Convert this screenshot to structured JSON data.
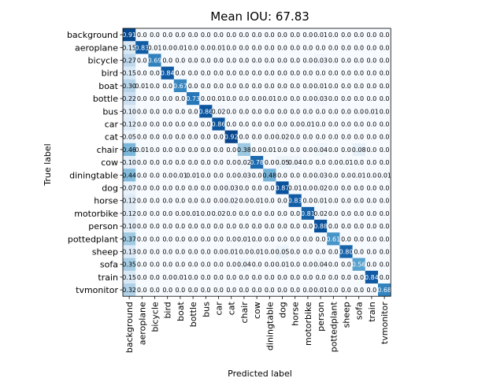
{
  "chart_data": {
    "type": "heatmap",
    "title": "Mean IOU: 67.83",
    "xlabel": "Predicted label",
    "ylabel": "True label",
    "labels": [
      "background",
      "aeroplane",
      "bicycle",
      "bird",
      "boat",
      "bottle",
      "bus",
      "car",
      "cat",
      "chair",
      "cow",
      "diningtable",
      "dog",
      "horse",
      "motorbike",
      "person",
      "pottedplant",
      "sheep",
      "sofa",
      "train",
      "tvmonitor"
    ],
    "colormap": "Blues",
    "vmin": 0,
    "vmax": 1,
    "matrix": [
      [
        0.91,
        0.0,
        0.0,
        0.0,
        0.0,
        0.0,
        0.0,
        0.0,
        0.0,
        0.0,
        0.0,
        0.0,
        0.0,
        0.0,
        0.0,
        0.01,
        0.0,
        0.0,
        0.0,
        0.0,
        0.0
      ],
      [
        0.15,
        0.83,
        0.01,
        0.0,
        0.01,
        0.0,
        0.0,
        0.01,
        0.0,
        0.0,
        0.0,
        0.0,
        0.0,
        0.0,
        0.0,
        0.0,
        0.0,
        0.0,
        0.0,
        0.0,
        0.0
      ],
      [
        0.27,
        0.0,
        0.69,
        0.0,
        0.0,
        0.0,
        0.0,
        0.0,
        0.0,
        0.0,
        0.0,
        0.0,
        0.0,
        0.0,
        0.0,
        0.03,
        0.0,
        0.0,
        0.0,
        0.0,
        0.0
      ],
      [
        0.15,
        0.0,
        0.0,
        0.84,
        0.0,
        0.0,
        0.0,
        0.0,
        0.0,
        0.0,
        0.0,
        0.0,
        0.0,
        0.0,
        0.0,
        0.0,
        0.0,
        0.0,
        0.0,
        0.0,
        0.0
      ],
      [
        0.3,
        0.01,
        0.0,
        0.0,
        0.67,
        0.0,
        0.0,
        0.0,
        0.0,
        0.0,
        0.0,
        0.0,
        0.0,
        0.0,
        0.0,
        0.01,
        0.0,
        0.0,
        0.0,
        0.0,
        0.0
      ],
      [
        0.22,
        0.0,
        0.0,
        0.0,
        0.0,
        0.73,
        0.0,
        0.01,
        0.0,
        0.0,
        0.0,
        0.01,
        0.0,
        0.0,
        0.0,
        0.03,
        0.0,
        0.0,
        0.0,
        0.0,
        0.0
      ],
      [
        0.1,
        0.0,
        0.0,
        0.0,
        0.0,
        0.0,
        0.86,
        0.02,
        0.0,
        0.0,
        0.0,
        0.0,
        0.0,
        0.0,
        0.0,
        0.0,
        0.0,
        0.0,
        0.0,
        0.01,
        0.0
      ],
      [
        0.12,
        0.0,
        0.0,
        0.0,
        0.0,
        0.0,
        0.0,
        0.86,
        0.0,
        0.0,
        0.0,
        0.0,
        0.0,
        0.0,
        0.01,
        0.0,
        0.0,
        0.0,
        0.0,
        0.0,
        0.0
      ],
      [
        0.05,
        0.0,
        0.0,
        0.0,
        0.0,
        0.0,
        0.0,
        0.0,
        0.92,
        0.0,
        0.0,
        0.0,
        0.02,
        0.0,
        0.0,
        0.0,
        0.0,
        0.0,
        0.0,
        0.0,
        0.0
      ],
      [
        0.46,
        0.01,
        0.0,
        0.0,
        0.0,
        0.0,
        0.0,
        0.0,
        0.0,
        0.38,
        0.0,
        0.01,
        0.0,
        0.0,
        0.0,
        0.04,
        0.0,
        0.0,
        0.08,
        0.0,
        0.0
      ],
      [
        0.1,
        0.0,
        0.0,
        0.0,
        0.0,
        0.0,
        0.0,
        0.0,
        0.0,
        0.02,
        0.78,
        0.0,
        0.05,
        0.04,
        0.0,
        0.0,
        0.0,
        0.01,
        0.0,
        0.0,
        0.0
      ],
      [
        0.44,
        0.0,
        0.0,
        0.0,
        0.01,
        0.01,
        0.0,
        0.0,
        0.0,
        0.03,
        0.0,
        0.48,
        0.0,
        0.0,
        0.0,
        0.03,
        0.0,
        0.0,
        0.01,
        0.0,
        0.01
      ],
      [
        0.07,
        0.0,
        0.0,
        0.0,
        0.0,
        0.0,
        0.0,
        0.0,
        0.03,
        0.0,
        0.0,
        0.0,
        0.87,
        0.01,
        0.0,
        0.02,
        0.0,
        0.0,
        0.0,
        0.0,
        0.0
      ],
      [
        0.12,
        0.0,
        0.0,
        0.0,
        0.0,
        0.0,
        0.0,
        0.0,
        0.02,
        0.0,
        0.01,
        0.0,
        0.0,
        0.83,
        0.0,
        0.01,
        0.0,
        0.0,
        0.0,
        0.0,
        0.0
      ],
      [
        0.12,
        0.0,
        0.0,
        0.0,
        0.0,
        0.01,
        0.0,
        0.02,
        0.0,
        0.0,
        0.0,
        0.0,
        0.0,
        0.0,
        0.81,
        0.02,
        0.0,
        0.0,
        0.0,
        0.0,
        0.0
      ],
      [
        0.1,
        0.0,
        0.0,
        0.0,
        0.0,
        0.0,
        0.0,
        0.0,
        0.0,
        0.0,
        0.0,
        0.0,
        0.0,
        0.0,
        0.0,
        0.88,
        0.0,
        0.0,
        0.0,
        0.0,
        0.0
      ],
      [
        0.37,
        0.0,
        0.0,
        0.0,
        0.0,
        0.0,
        0.0,
        0.0,
        0.0,
        0.01,
        0.0,
        0.0,
        0.0,
        0.0,
        0.0,
        0.0,
        0.61,
        0.0,
        0.0,
        0.0,
        0.0
      ],
      [
        0.13,
        0.0,
        0.0,
        0.0,
        0.0,
        0.0,
        0.0,
        0.0,
        0.01,
        0.0,
        0.01,
        0.0,
        0.05,
        0.0,
        0.0,
        0.0,
        0.0,
        0.8,
        0.0,
        0.0,
        0.0
      ],
      [
        0.35,
        0.0,
        0.0,
        0.0,
        0.0,
        0.0,
        0.0,
        0.0,
        0.0,
        0.04,
        0.0,
        0.0,
        0.01,
        0.0,
        0.0,
        0.04,
        0.0,
        0.0,
        0.56,
        0.0,
        0.0
      ],
      [
        0.15,
        0.0,
        0.0,
        0.0,
        0.01,
        0.0,
        0.0,
        0.0,
        0.0,
        0.0,
        0.0,
        0.0,
        0.0,
        0.0,
        0.0,
        0.0,
        0.0,
        0.0,
        0.0,
        0.84,
        0.0
      ],
      [
        0.32,
        0.0,
        0.0,
        0.0,
        0.0,
        0.0,
        0.0,
        0.0,
        0.0,
        0.0,
        0.0,
        0.0,
        0.0,
        0.0,
        0.0,
        0.01,
        0.0,
        0.0,
        0.0,
        0.0,
        0.68
      ]
    ]
  }
}
